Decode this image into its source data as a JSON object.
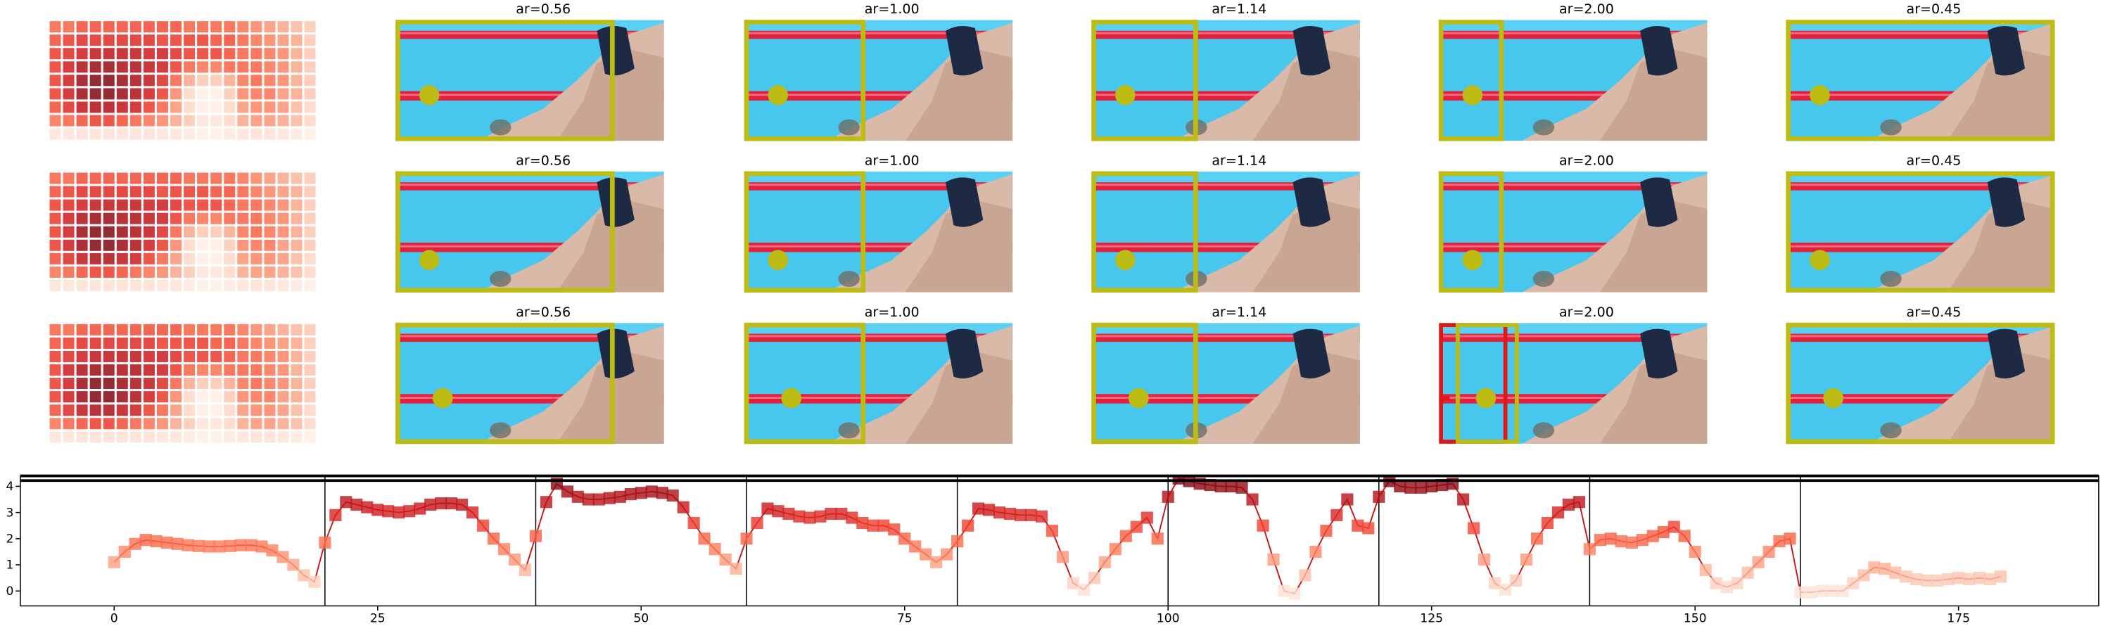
{
  "image_grid": {
    "rows": [
      [
        "ar=0.56",
        "ar=1.00",
        "ar=1.14",
        "ar=2.00",
        "ar=0.45"
      ],
      [
        "ar=0.56",
        "ar=1.00",
        "ar=1.14",
        "ar=2.00",
        "ar=0.45"
      ],
      [
        "ar=0.56",
        "ar=1.00",
        "ar=1.14",
        "ar=2.00",
        "ar=0.45"
      ]
    ]
  },
  "chart_data": [
    {
      "type": "heatmap",
      "colors": [
        "#fff5f0",
        "#fee0d2",
        "#fcbba1",
        "#fc9272",
        "#fb6a4a",
        "#ef3b2c",
        "#cb181d",
        "#a50f15",
        "#67000d"
      ],
      "values": [
        [
          0.5,
          0.5,
          0.55,
          0.55,
          0.55,
          0.55,
          0.55,
          0.55,
          0.55,
          0.55,
          0.5,
          0.5,
          0.5,
          0.5,
          0.45,
          0.4,
          0.35,
          0.3,
          0.25,
          0.2
        ],
        [
          0.55,
          0.6,
          0.65,
          0.65,
          0.65,
          0.65,
          0.65,
          0.65,
          0.6,
          0.6,
          0.6,
          0.6,
          0.55,
          0.55,
          0.5,
          0.45,
          0.4,
          0.35,
          0.3,
          0.2
        ],
        [
          0.6,
          0.65,
          0.7,
          0.75,
          0.75,
          0.75,
          0.75,
          0.7,
          0.7,
          0.65,
          0.6,
          0.6,
          0.6,
          0.55,
          0.5,
          0.5,
          0.45,
          0.4,
          0.3,
          0.2
        ],
        [
          0.6,
          0.7,
          0.8,
          0.85,
          0.85,
          0.8,
          0.8,
          0.75,
          0.7,
          0.6,
          0.5,
          0.45,
          0.45,
          0.5,
          0.5,
          0.5,
          0.45,
          0.4,
          0.3,
          0.2
        ],
        [
          0.6,
          0.7,
          0.85,
          0.9,
          0.9,
          0.85,
          0.8,
          0.75,
          0.65,
          0.5,
          0.3,
          0.2,
          0.2,
          0.3,
          0.45,
          0.5,
          0.45,
          0.4,
          0.3,
          0.2
        ],
        [
          0.6,
          0.7,
          0.85,
          0.9,
          0.9,
          0.85,
          0.8,
          0.7,
          0.6,
          0.4,
          0.15,
          0.05,
          0.05,
          0.2,
          0.4,
          0.45,
          0.45,
          0.35,
          0.3,
          0.2
        ],
        [
          0.55,
          0.65,
          0.75,
          0.8,
          0.8,
          0.75,
          0.7,
          0.6,
          0.5,
          0.35,
          0.15,
          0.05,
          0.05,
          0.15,
          0.35,
          0.4,
          0.4,
          0.35,
          0.25,
          0.15
        ],
        [
          0.45,
          0.5,
          0.55,
          0.6,
          0.6,
          0.55,
          0.5,
          0.45,
          0.4,
          0.3,
          0.2,
          0.1,
          0.1,
          0.15,
          0.3,
          0.35,
          0.35,
          0.3,
          0.25,
          0.15
        ],
        [
          0.1,
          0.1,
          0.12,
          0.12,
          0.12,
          0.12,
          0.12,
          0.12,
          0.1,
          0.1,
          0.08,
          0.05,
          0.05,
          0.08,
          0.1,
          0.12,
          0.12,
          0.1,
          0.08,
          0.05
        ]
      ]
    },
    {
      "type": "line",
      "line_color": "#c81414",
      "colors": [
        "#fff5f0",
        "#fee0d2",
        "#fcbba1",
        "#fc9272",
        "#fb6a4a",
        "#ef3b2c",
        "#cb181d",
        "#a50f15",
        "#67000d"
      ],
      "xlim": [
        -8.9,
        188.3
      ],
      "ylim": [
        -0.57,
        4.4
      ],
      "xticks": [
        0,
        25,
        50,
        75,
        100,
        125,
        150,
        175
      ],
      "yticks": [
        0,
        1,
        2,
        3,
        4
      ],
      "vlines": [
        20,
        40,
        60,
        80,
        100,
        120,
        140,
        160
      ],
      "x": [
        0,
        1,
        2,
        3,
        4,
        5,
        6,
        7,
        8,
        9,
        10,
        11,
        12,
        13,
        14,
        15,
        16,
        17,
        18,
        19,
        20,
        21,
        22,
        23,
        24,
        25,
        26,
        27,
        28,
        29,
        30,
        31,
        32,
        33,
        34,
        35,
        36,
        37,
        38,
        39,
        40,
        41,
        42,
        43,
        44,
        45,
        46,
        47,
        48,
        49,
        50,
        51,
        52,
        53,
        54,
        55,
        56,
        57,
        58,
        59,
        60,
        61,
        62,
        63,
        64,
        65,
        66,
        67,
        68,
        69,
        70,
        71,
        72,
        73,
        74,
        75,
        76,
        77,
        78,
        79,
        80,
        81,
        82,
        83,
        84,
        85,
        86,
        87,
        88,
        89,
        90,
        91,
        92,
        93,
        94,
        95,
        96,
        97,
        98,
        99,
        100,
        101,
        102,
        103,
        104,
        105,
        106,
        107,
        108,
        109,
        110,
        111,
        112,
        113,
        114,
        115,
        116,
        117,
        118,
        119,
        120,
        121,
        122,
        123,
        124,
        125,
        126,
        127,
        128,
        129,
        130,
        131,
        132,
        133,
        134,
        135,
        136,
        137,
        138,
        139,
        140,
        141,
        142,
        143,
        144,
        145,
        146,
        147,
        148,
        149,
        150,
        151,
        152,
        153,
        154,
        155,
        156,
        157,
        158,
        159,
        160,
        161,
        162,
        163,
        164,
        165,
        166,
        167,
        168,
        169,
        170,
        171,
        172,
        173,
        174,
        175,
        176,
        177,
        178,
        179
      ],
      "values": [
        1.1,
        1.5,
        1.8,
        1.95,
        1.9,
        1.85,
        1.8,
        1.75,
        1.72,
        1.7,
        1.7,
        1.72,
        1.75,
        1.75,
        1.7,
        1.55,
        1.3,
        1.0,
        0.6,
        0.35,
        1.85,
        2.9,
        3.4,
        3.3,
        3.2,
        3.1,
        3.05,
        3.0,
        3.05,
        3.15,
        3.3,
        3.35,
        3.35,
        3.3,
        3.0,
        2.5,
        2.0,
        1.6,
        1.2,
        0.8,
        2.1,
        3.4,
        4.1,
        3.8,
        3.6,
        3.5,
        3.5,
        3.55,
        3.6,
        3.7,
        3.75,
        3.8,
        3.75,
        3.65,
        3.2,
        2.6,
        2.0,
        1.6,
        1.2,
        0.85,
        2.0,
        2.6,
        3.15,
        3.05,
        2.95,
        2.85,
        2.8,
        2.85,
        2.95,
        2.95,
        2.8,
        2.6,
        2.5,
        2.5,
        2.35,
        2.0,
        1.7,
        1.4,
        1.1,
        1.4,
        1.9,
        2.5,
        3.15,
        3.1,
        3.0,
        2.95,
        2.9,
        2.9,
        2.85,
        2.3,
        1.3,
        0.3,
        0.05,
        0.5,
        1.1,
        1.6,
        2.1,
        2.45,
        2.8,
        2.0,
        3.6,
        4.3,
        4.2,
        4.1,
        4.05,
        4.0,
        4.0,
        3.95,
        3.5,
        2.5,
        1.2,
        0.0,
        -0.1,
        0.6,
        1.5,
        2.3,
        2.9,
        3.5,
        2.5,
        2.4,
        3.6,
        4.2,
        4.0,
        3.95,
        3.95,
        4.0,
        4.05,
        4.1,
        3.5,
        2.4,
        1.2,
        0.3,
        0.05,
        0.4,
        1.2,
        2.0,
        2.6,
        3.0,
        3.3,
        3.4,
        1.6,
        1.95,
        2.0,
        1.9,
        1.85,
        1.95,
        2.1,
        2.25,
        2.45,
        2.1,
        1.5,
        0.8,
        0.3,
        0.15,
        0.3,
        0.7,
        1.1,
        1.5,
        1.9,
        2.0,
        -0.05,
        -0.05,
        0.0,
        0.0,
        0.0,
        0.3,
        0.6,
        0.9,
        0.85,
        0.7,
        0.55,
        0.45,
        0.4,
        0.4,
        0.45,
        0.5,
        0.45,
        0.5,
        0.45,
        0.55
      ]
    }
  ]
}
